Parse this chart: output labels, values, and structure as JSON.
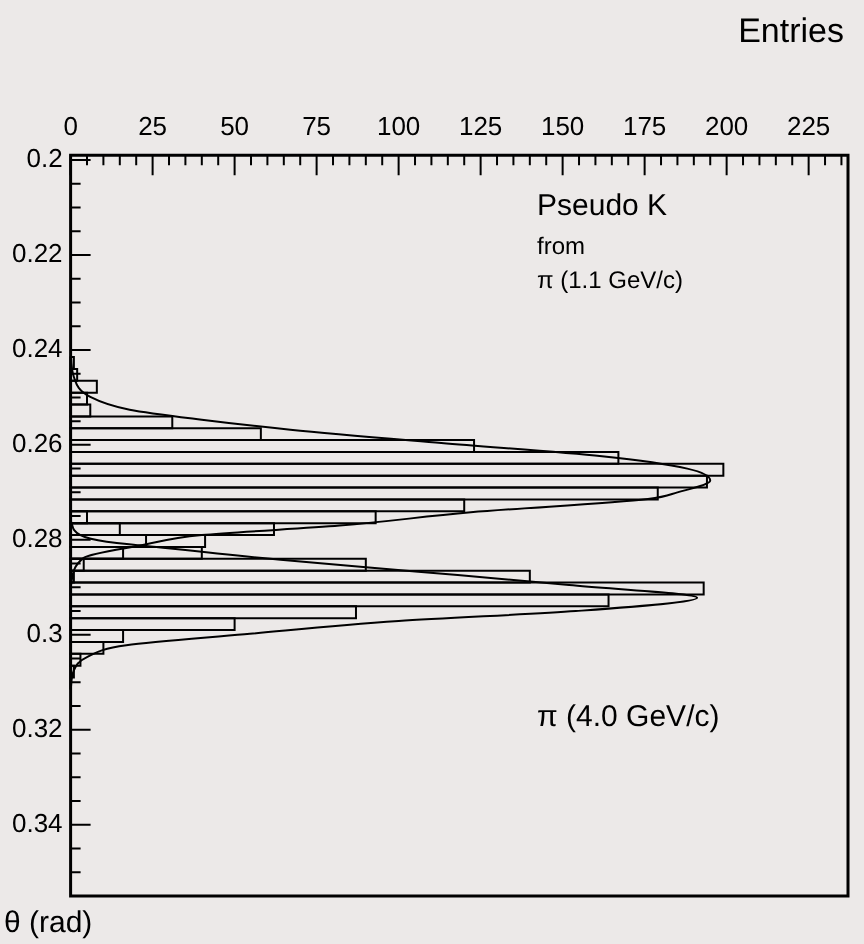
{
  "chart_data": {
    "type": "histogram",
    "orientation": "horizontal",
    "xlabel": "Entries",
    "ylabel": "θ (rad)",
    "bins": [
      0.2415,
      0.244,
      0.2465,
      0.249,
      0.2515,
      0.254,
      0.2565,
      0.259,
      0.2615,
      0.264,
      0.2665,
      0.269,
      0.2715,
      0.274,
      0.2765,
      0.279,
      0.2815,
      0.284,
      0.2865,
      0.289,
      0.2915,
      0.294,
      0.2965,
      0.299,
      0.3015,
      0.304,
      0.3065,
      0.309,
      0.3115
    ],
    "series": [
      {
        "color": "#000000",
        "values": [
          1,
          2,
          8,
          5,
          6,
          31,
          58,
          123,
          167,
          199,
          194,
          179,
          120,
          93,
          62,
          41,
          16,
          4,
          1,
          0,
          0,
          0,
          0,
          0,
          0,
          0,
          0,
          0
        ]
      },
      {
        "color": "#000000",
        "values": [
          0,
          0,
          0,
          0,
          0,
          0,
          0,
          0,
          0,
          0,
          0,
          0,
          0,
          5,
          15,
          23,
          40,
          90,
          140,
          193,
          164,
          87,
          50,
          16,
          10,
          3,
          1,
          0
        ]
      },
      {
        "type": "line",
        "color": "#000000",
        "x": [
          0.24,
          0.2457,
          0.2499,
          0.2526,
          0.2547,
          0.2568,
          0.2596,
          0.2624,
          0.265,
          0.2675,
          0.27,
          0.2714,
          0.2742,
          0.277,
          0.279,
          0.2811,
          0.2838,
          0.29
        ],
        "values": [
          0,
          1,
          6,
          18,
          40,
          67,
          113,
          162,
          188,
          195,
          185,
          176,
          122,
          82,
          40,
          22,
          4,
          0
        ]
      },
      {
        "type": "line",
        "color": "#000000",
        "x": [
          0.276,
          0.279,
          0.2804,
          0.2813,
          0.2842,
          0.2867,
          0.2895,
          0.2922,
          0.295,
          0.2971,
          0.2999,
          0.3022,
          0.3047,
          0.3075,
          0.312
        ],
        "values": [
          0,
          3,
          11,
          23,
          64,
          106,
          152,
          191,
          154,
          100,
          53,
          17,
          5,
          1,
          0
        ]
      }
    ],
    "annotations": [
      "Pseudo K",
      "from",
      "π (1.1 GeV/c)",
      "π (4.0 GeV/c)"
    ],
    "ylim": [
      0.355,
      0.199
    ],
    "yticks": [
      0.2,
      {
        "value": 0.205,
        "label": null
      },
      {
        "value": 0.21,
        "label": null
      },
      {
        "value": 0.215,
        "label": null
      },
      0.22,
      {
        "value": 0.225,
        "label": null
      },
      {
        "value": 0.23,
        "label": null
      },
      {
        "value": 0.235,
        "label": null
      },
      0.24,
      {
        "value": 0.245,
        "label": null
      },
      {
        "value": 0.25,
        "label": null
      },
      {
        "value": 0.255,
        "label": null
      },
      0.26,
      {
        "value": 0.265,
        "label": null
      },
      {
        "value": 0.27,
        "label": null
      },
      {
        "value": 0.275,
        "label": null
      },
      0.28,
      {
        "value": 0.285,
        "label": null
      },
      {
        "value": 0.29,
        "label": null
      },
      {
        "value": 0.295,
        "label": null
      },
      0.3,
      {
        "value": 0.305,
        "label": null
      },
      {
        "value": 0.31,
        "label": null
      },
      {
        "value": 0.315,
        "label": null
      },
      0.32,
      {
        "value": 0.325,
        "label": null
      },
      {
        "value": 0.33,
        "label": null
      },
      {
        "value": 0.335,
        "label": null
      },
      0.34,
      {
        "value": 0.345,
        "label": null
      },
      {
        "value": 0.35,
        "label": null
      }
    ],
    "xlim": [
      0,
      237
    ],
    "xticks": [
      0,
      {
        "value": 5,
        "label": null
      },
      {
        "value": 10,
        "label": null
      },
      {
        "value": 15,
        "label": null
      },
      {
        "value": 20,
        "label": null
      },
      25,
      {
        "value": 30,
        "label": null
      },
      {
        "value": 35,
        "label": null
      },
      {
        "value": 40,
        "label": null
      },
      {
        "value": 45,
        "label": null
      },
      50,
      {
        "value": 55,
        "label": null
      },
      {
        "value": 60,
        "label": null
      },
      {
        "value": 65,
        "label": null
      },
      {
        "value": 70,
        "label": null
      },
      75,
      {
        "value": 80,
        "label": null
      },
      {
        "value": 85,
        "label": null
      },
      {
        "value": 90,
        "label": null
      },
      {
        "value": 95,
        "label": null
      },
      100,
      {
        "value": 105,
        "label": null
      },
      {
        "value": 110,
        "label": null
      },
      {
        "value": 115,
        "label": null
      },
      {
        "value": 120,
        "label": null
      },
      125,
      {
        "value": 130,
        "label": null
      },
      {
        "value": 135,
        "label": null
      },
      {
        "value": 140,
        "label": null
      },
      {
        "value": 145,
        "label": null
      },
      150,
      {
        "value": 155,
        "label": null
      },
      {
        "value": 160,
        "label": null
      },
      {
        "value": 165,
        "label": null
      },
      {
        "value": 170,
        "label": null
      },
      175,
      {
        "value": 180,
        "label": null
      },
      {
        "value": 185,
        "label": null
      },
      {
        "value": 190,
        "label": null
      },
      {
        "value": 195,
        "label": null
      },
      200,
      {
        "value": 205,
        "label": null
      },
      {
        "value": 210,
        "label": null
      },
      {
        "value": 215,
        "label": null
      },
      {
        "value": 220,
        "label": null
      },
      225,
      {
        "value": 230,
        "label": null
      },
      {
        "value": 235,
        "label": null
      }
    ]
  }
}
